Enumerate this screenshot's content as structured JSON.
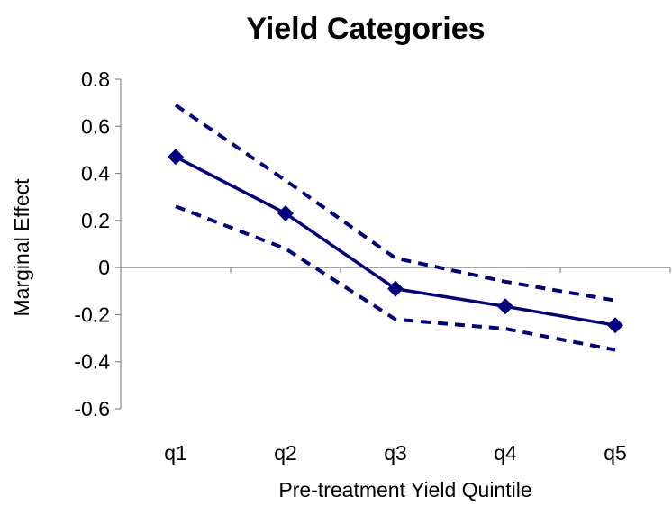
{
  "chart_data": {
    "type": "line",
    "title": "Yield Categories",
    "xlabel": "Pre-treatment Yield Quintile",
    "ylabel": "Marginal Effect",
    "categories": [
      "q1",
      "q2",
      "q3",
      "q4",
      "q5"
    ],
    "ylim": [
      -0.6,
      0.8
    ],
    "yticks": [
      -0.6,
      -0.4,
      -0.2,
      0,
      0.2,
      0.4,
      0.6,
      0.8
    ],
    "ytick_labels": [
      "-0.6",
      "-0.4",
      "-0.2",
      "0",
      "0.2",
      "0.4",
      "0.6",
      "0.8"
    ],
    "grid": false,
    "series": [
      {
        "role": "estimate",
        "values": [
          0.47,
          0.23,
          -0.09,
          -0.165,
          -0.245
        ],
        "color": "#000080",
        "style": "solid",
        "marker": "diamond"
      },
      {
        "role": "upper-bound",
        "values": [
          0.69,
          0.37,
          0.04,
          -0.06,
          -0.14
        ],
        "color": "#000080",
        "style": "dashed",
        "marker": "none"
      },
      {
        "role": "lower-bound",
        "values": [
          0.26,
          0.08,
          -0.22,
          -0.26,
          -0.35
        ],
        "color": "#000080",
        "style": "dashed",
        "marker": "none"
      }
    ]
  }
}
